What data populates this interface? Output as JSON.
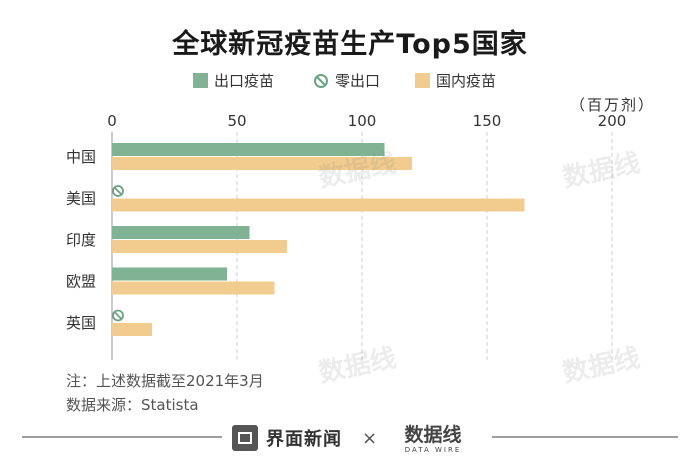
{
  "title": "全球新冠疫苗生产Top5国家",
  "unit": "（百万剂）",
  "legend": {
    "export": "出口疫苗",
    "zero": "零出口",
    "domestic": "国内疫苗"
  },
  "notes": {
    "note": "注：上述数据截至2021年3月",
    "source": "数据来源：Statista"
  },
  "footer": {
    "brand": "界面新闻",
    "separator": "×",
    "logo_text": "数据线",
    "logo_sub": "DATA WIRE"
  },
  "colors": {
    "export": "#7fb393",
    "domestic": "#f2cc8f",
    "zero_icon": "#6aa382",
    "grid": "#cfcfcf"
  },
  "chart_data": {
    "type": "bar",
    "orientation": "horizontal",
    "categories": [
      "中国",
      "美国",
      "印度",
      "欧盟",
      "英国"
    ],
    "series": [
      {
        "name": "出口疫苗",
        "values": [
          109,
          0,
          55,
          46,
          0
        ]
      },
      {
        "name": "国内疫苗",
        "values": [
          120,
          165,
          70,
          65,
          16
        ]
      }
    ],
    "zero_export": [
      false,
      true,
      false,
      false,
      true
    ],
    "xticks": [
      0,
      50,
      100,
      150,
      200
    ],
    "xlim": [
      0,
      200
    ],
    "grid": true,
    "legend": "top"
  }
}
